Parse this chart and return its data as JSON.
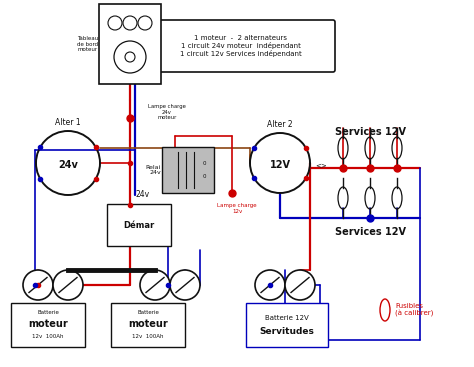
{
  "bg_color": "#ffffff",
  "red": "#cc0000",
  "blue": "#0000bb",
  "brown": "#8B4513",
  "black": "#111111",
  "lw_thick": 1.6,
  "lw_med": 1.2,
  "title_lines": [
    "1 moteur  -  2 alternateurs",
    "1 circuit 24v moteur  indépendant",
    "1 circuit 12v Services indépendant"
  ],
  "tableau_label": "Tableau\nde bord\nmoteur",
  "alter1_label": "Alter 1",
  "alter1_volt": "24v",
  "alter2_label": "Alter 2",
  "alter2_volt": "12V",
  "relai_label": "Relai\n24v",
  "demar_label": "Démar",
  "demar_volt": "24v",
  "lampe1_label": "Lampe charge\n24v\nmoteur",
  "lampe2_label": "Lampe charge\n12v",
  "services_top": "Services 12V",
  "services_bot": "Services 12V",
  "fusibles_label": "Fusibles\n(à calibrer)",
  "bat12_label1": "Batterie",
  "bat12_label2": "moteur",
  "bat12_label3": "12v  100Ah",
  "bat3_label1": "Batterie 12V",
  "bat3_label2": "Servitudes"
}
